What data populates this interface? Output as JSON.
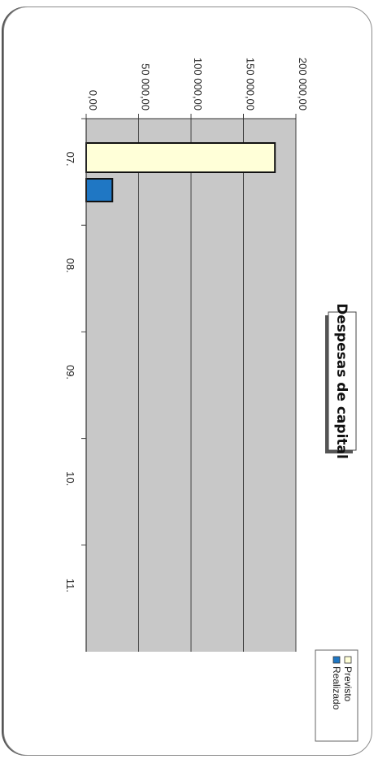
{
  "chart_data": {
    "type": "bar",
    "title": "Despesas de capital",
    "orientation": "rotated-90-clockwise",
    "categories": [
      "07.",
      "08.",
      "09.",
      "10.",
      "11."
    ],
    "series": [
      {
        "name": "Previsto",
        "values": [
          180000,
          0,
          0,
          0,
          0
        ],
        "color": "#ffffd8"
      },
      {
        "name": "Realizado",
        "values": [
          25000,
          0,
          0,
          0,
          0
        ],
        "color": "#1f77c4"
      }
    ],
    "value_ticks": [
      "0,00",
      "50 000,00",
      "100 000,00",
      "150 000,00",
      "200 000,00"
    ],
    "ylim": [
      0,
      200000
    ],
    "grid": true,
    "plot_background": "#c8c8c8",
    "legend_position": "bottom"
  }
}
